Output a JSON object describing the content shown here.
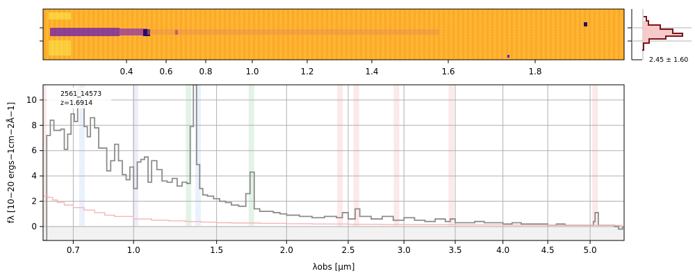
{
  "figure": {
    "colors": {
      "spectrum": "#8c8c8c",
      "error": "#f5b5b8",
      "grid": "#b0b0b0",
      "spec2d_bg": "#fdb32c",
      "trace": "#6a1bb0",
      "profile": "#7a1418",
      "profile_fill": "#f6c9cb"
    },
    "lines": [
      {
        "x": 0.572,
        "color": "#f4a6a6"
      },
      {
        "x": 0.74,
        "color": "#a6c8f4"
      },
      {
        "x": 1.01,
        "color": "#b9b3e0"
      },
      {
        "x": 1.32,
        "color": "#8fd19e"
      },
      {
        "x": 1.38,
        "color": "#a6c8f4"
      },
      {
        "x": 1.74,
        "color": "#8fd19e"
      },
      {
        "x": 2.43,
        "color": "#f4a6a6"
      },
      {
        "x": 2.57,
        "color": "#f4a6a6"
      },
      {
        "x": 2.93,
        "color": "#f4a6a6"
      },
      {
        "x": 3.46,
        "color": "#f4a6a6"
      },
      {
        "x": 5.06,
        "color": "#f4a6a6"
      }
    ]
  },
  "spec2d": {
    "x_tick_labels": [
      "0.4",
      "0.6",
      "0.8",
      "1.0",
      "1.2",
      "1.4",
      "1.6",
      "1.8"
    ]
  },
  "profile": {
    "label": "2.45 ± 1.60"
  },
  "annotation": {
    "id": "2561_14573",
    "redshift": "z=1.6914"
  },
  "chart_data": {
    "type": "line",
    "xlabel": "λobs [μm]",
    "ylabel": "fλ [10−20 ergs−1cm−2Å−1]",
    "x_scale": "sqrt",
    "xlim": [
      0.57,
      5.42
    ],
    "ylim": [
      -1.1,
      11.2
    ],
    "grid": true,
    "x_ticks": [
      0.7,
      1.0,
      1.5,
      2.0,
      2.5,
      3.0,
      3.5,
      4.0,
      4.5,
      5.0
    ],
    "x_tick_labels": [
      "0.7",
      "1.0",
      "1.5",
      "2.0",
      "2.5",
      "3.0",
      "3.5",
      "4.0",
      "4.5",
      "5.0"
    ],
    "y_ticks": [
      0,
      2,
      4,
      6,
      8,
      10
    ],
    "y_tick_labels": [
      "0",
      "2",
      "4",
      "6",
      "8",
      "10"
    ],
    "series": [
      {
        "key": "flux",
        "x": [
          0.57,
          0.585,
          0.6,
          0.615,
          0.63,
          0.645,
          0.66,
          0.675,
          0.69,
          0.705,
          0.72,
          0.735,
          0.75,
          0.765,
          0.78,
          0.8,
          0.82,
          0.84,
          0.86,
          0.88,
          0.9,
          0.92,
          0.94,
          0.96,
          0.98,
          1.0,
          1.02,
          1.04,
          1.06,
          1.08,
          1.1,
          1.13,
          1.16,
          1.19,
          1.22,
          1.25,
          1.28,
          1.31,
          1.33,
          1.35,
          1.37,
          1.39,
          1.41,
          1.44,
          1.48,
          1.52,
          1.56,
          1.6,
          1.65,
          1.7,
          1.73,
          1.76,
          1.8,
          1.85,
          1.9,
          1.95,
          2.0,
          2.1,
          2.2,
          2.3,
          2.4,
          2.45,
          2.5,
          2.56,
          2.6,
          2.7,
          2.8,
          2.9,
          3.0,
          3.1,
          3.2,
          3.3,
          3.4,
          3.45,
          3.5,
          3.6,
          3.7,
          3.8,
          3.9,
          4.0,
          4.1,
          4.2,
          4.3,
          4.4,
          4.5,
          4.6,
          4.7,
          4.8,
          4.9,
          5.0,
          5.04,
          5.06,
          5.1,
          5.2,
          5.3,
          5.35,
          5.4
        ],
        "y": [
          -1.1,
          7.2,
          8.4,
          7.6,
          7.6,
          7.7,
          6.1,
          7.3,
          8.9,
          8.3,
          10.8,
          9.8,
          7.9,
          7.1,
          8.6,
          7.8,
          6.2,
          6.2,
          4.4,
          5.2,
          6.5,
          5.2,
          4.1,
          3.7,
          4.7,
          3.0,
          5.1,
          5.3,
          5.5,
          3.5,
          5.2,
          4.5,
          3.6,
          3.5,
          3.8,
          3.2,
          3.5,
          3.4,
          7.9,
          11.2,
          4.9,
          3.0,
          2.5,
          2.4,
          2.2,
          2.0,
          1.9,
          1.7,
          1.6,
          2.6,
          4.3,
          1.4,
          1.2,
          1.2,
          1.1,
          1.0,
          0.9,
          0.8,
          0.7,
          0.8,
          0.7,
          1.1,
          0.6,
          1.4,
          0.8,
          0.6,
          0.8,
          0.5,
          0.7,
          0.5,
          0.4,
          0.6,
          0.4,
          0.6,
          0.3,
          0.3,
          0.4,
          0.3,
          0.3,
          0.2,
          0.3,
          0.2,
          0.2,
          0.2,
          0.1,
          0.2,
          0.1,
          0.1,
          0.1,
          0.1,
          0.4,
          1.1,
          0.1,
          0.1,
          0.0,
          -0.2,
          0.0
        ]
      },
      {
        "key": "error",
        "x": [
          0.57,
          0.59,
          0.61,
          0.63,
          0.66,
          0.7,
          0.75,
          0.8,
          0.85,
          0.9,
          1.0,
          1.1,
          1.2,
          1.3,
          1.4,
          1.5,
          1.6,
          1.8,
          2.0,
          2.2,
          2.5,
          2.8,
          3.0,
          3.5,
          4.0,
          4.5,
          5.0,
          5.4
        ],
        "y": [
          2.4,
          2.3,
          2.1,
          1.9,
          1.7,
          1.5,
          1.3,
          1.1,
          0.9,
          0.8,
          0.6,
          0.5,
          0.45,
          0.4,
          0.35,
          0.3,
          0.28,
          0.25,
          0.22,
          0.2,
          0.18,
          0.16,
          0.15,
          0.13,
          0.12,
          0.1,
          0.1,
          0.1
        ]
      }
    ]
  }
}
